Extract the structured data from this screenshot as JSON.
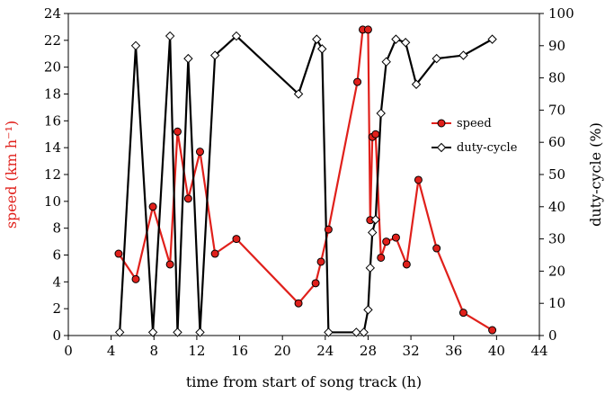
{
  "chart_data": {
    "type": "line",
    "xlabel": "time from start of song track (h)",
    "ylabel_left": "speed (km h⁻¹)",
    "ylabel_right": "duty-cycle (%)",
    "xlim": [
      0,
      44
    ],
    "xticks": [
      0,
      4,
      8,
      12,
      16,
      20,
      24,
      28,
      32,
      36,
      40,
      44
    ],
    "ylim_left": [
      0,
      24
    ],
    "yticks_left": [
      0,
      2,
      4,
      6,
      8,
      10,
      12,
      14,
      16,
      18,
      20,
      22,
      24
    ],
    "ylim_right": [
      0,
      100
    ],
    "yticks_right": [
      0,
      10,
      20,
      30,
      40,
      50,
      60,
      70,
      80,
      90,
      100
    ],
    "legend_position": "right-middle",
    "colors": {
      "speed": "#e0201b",
      "duty": "#000000"
    },
    "series": [
      {
        "name": "speed",
        "axis": "left",
        "marker": "circle",
        "x": [
          4.7,
          6.3,
          7.9,
          9.5,
          10.2,
          11.2,
          12.3,
          13.7,
          15.7,
          21.5,
          23.1,
          23.6,
          24.3,
          27.0,
          27.5,
          28.0,
          28.2,
          28.4,
          28.7,
          29.2,
          29.7,
          30.6,
          31.6,
          32.7,
          34.4,
          36.9,
          39.6
        ],
        "y": [
          6.1,
          4.2,
          9.6,
          5.3,
          15.2,
          10.2,
          13.7,
          6.1,
          7.2,
          2.4,
          3.9,
          5.5,
          7.9,
          18.9,
          22.8,
          22.8,
          8.6,
          14.8,
          15.0,
          5.8,
          7.0,
          7.3,
          5.3,
          11.6,
          6.5,
          1.7,
          0.4
        ]
      },
      {
        "name": "duty-cycle",
        "axis": "right",
        "marker": "diamond",
        "x": [
          4.8,
          6.3,
          7.9,
          9.5,
          10.2,
          11.2,
          12.3,
          13.7,
          15.7,
          21.5,
          23.2,
          23.7,
          24.3,
          26.9,
          27.6,
          28.0,
          28.2,
          28.4,
          28.7,
          29.2,
          29.7,
          30.6,
          31.5,
          32.5,
          34.4,
          36.9,
          39.6
        ],
        "y": [
          1,
          90,
          1,
          93,
          1,
          86,
          1,
          87,
          93,
          75,
          92,
          89,
          1,
          1,
          1,
          8,
          21,
          32,
          36,
          69,
          85,
          92,
          91,
          78,
          86,
          87,
          92
        ]
      }
    ]
  }
}
